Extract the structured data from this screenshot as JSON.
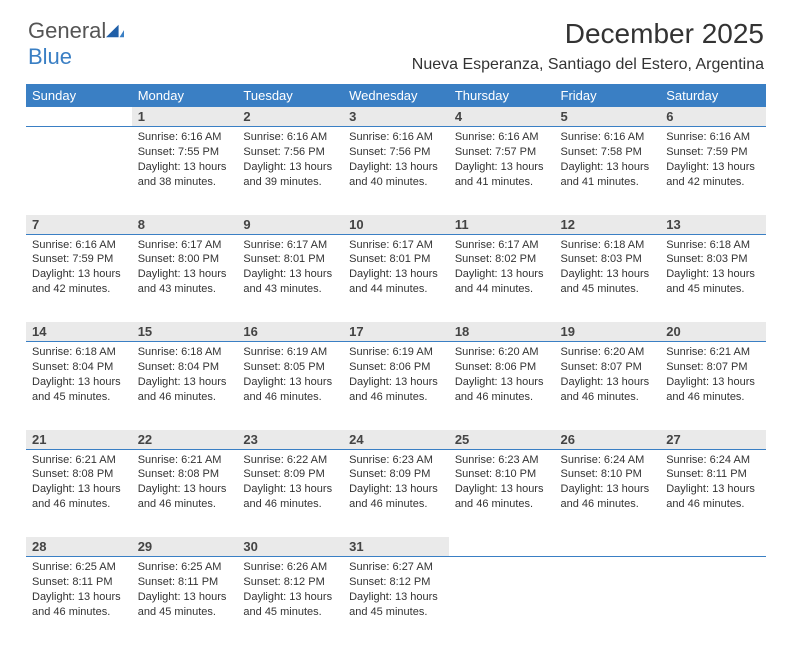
{
  "brand": {
    "part1": "General",
    "part2": "Blue"
  },
  "title": "December 2025",
  "location": "Nueva Esperanza, Santiago del Estero, Argentina",
  "colors": {
    "header_bg": "#3a7fc4",
    "header_text": "#ffffff",
    "daynum_bg": "#eaeaea",
    "daynum_border": "#3a7fc4",
    "body_text": "#333333",
    "page_bg": "#ffffff"
  },
  "typography": {
    "title_fontsize": 28,
    "location_fontsize": 16,
    "header_fontsize": 13,
    "daynum_fontsize": 13,
    "cell_fontsize": 11
  },
  "weekdays": [
    "Sunday",
    "Monday",
    "Tuesday",
    "Wednesday",
    "Thursday",
    "Friday",
    "Saturday"
  ],
  "weeks": [
    [
      null,
      {
        "n": "1",
        "sr": "Sunrise: 6:16 AM",
        "ss": "Sunset: 7:55 PM",
        "d1": "Daylight: 13 hours",
        "d2": "and 38 minutes."
      },
      {
        "n": "2",
        "sr": "Sunrise: 6:16 AM",
        "ss": "Sunset: 7:56 PM",
        "d1": "Daylight: 13 hours",
        "d2": "and 39 minutes."
      },
      {
        "n": "3",
        "sr": "Sunrise: 6:16 AM",
        "ss": "Sunset: 7:56 PM",
        "d1": "Daylight: 13 hours",
        "d2": "and 40 minutes."
      },
      {
        "n": "4",
        "sr": "Sunrise: 6:16 AM",
        "ss": "Sunset: 7:57 PM",
        "d1": "Daylight: 13 hours",
        "d2": "and 41 minutes."
      },
      {
        "n": "5",
        "sr": "Sunrise: 6:16 AM",
        "ss": "Sunset: 7:58 PM",
        "d1": "Daylight: 13 hours",
        "d2": "and 41 minutes."
      },
      {
        "n": "6",
        "sr": "Sunrise: 6:16 AM",
        "ss": "Sunset: 7:59 PM",
        "d1": "Daylight: 13 hours",
        "d2": "and 42 minutes."
      }
    ],
    [
      {
        "n": "7",
        "sr": "Sunrise: 6:16 AM",
        "ss": "Sunset: 7:59 PM",
        "d1": "Daylight: 13 hours",
        "d2": "and 42 minutes."
      },
      {
        "n": "8",
        "sr": "Sunrise: 6:17 AM",
        "ss": "Sunset: 8:00 PM",
        "d1": "Daylight: 13 hours",
        "d2": "and 43 minutes."
      },
      {
        "n": "9",
        "sr": "Sunrise: 6:17 AM",
        "ss": "Sunset: 8:01 PM",
        "d1": "Daylight: 13 hours",
        "d2": "and 43 minutes."
      },
      {
        "n": "10",
        "sr": "Sunrise: 6:17 AM",
        "ss": "Sunset: 8:01 PM",
        "d1": "Daylight: 13 hours",
        "d2": "and 44 minutes."
      },
      {
        "n": "11",
        "sr": "Sunrise: 6:17 AM",
        "ss": "Sunset: 8:02 PM",
        "d1": "Daylight: 13 hours",
        "d2": "and 44 minutes."
      },
      {
        "n": "12",
        "sr": "Sunrise: 6:18 AM",
        "ss": "Sunset: 8:03 PM",
        "d1": "Daylight: 13 hours",
        "d2": "and 45 minutes."
      },
      {
        "n": "13",
        "sr": "Sunrise: 6:18 AM",
        "ss": "Sunset: 8:03 PM",
        "d1": "Daylight: 13 hours",
        "d2": "and 45 minutes."
      }
    ],
    [
      {
        "n": "14",
        "sr": "Sunrise: 6:18 AM",
        "ss": "Sunset: 8:04 PM",
        "d1": "Daylight: 13 hours",
        "d2": "and 45 minutes."
      },
      {
        "n": "15",
        "sr": "Sunrise: 6:18 AM",
        "ss": "Sunset: 8:04 PM",
        "d1": "Daylight: 13 hours",
        "d2": "and 46 minutes."
      },
      {
        "n": "16",
        "sr": "Sunrise: 6:19 AM",
        "ss": "Sunset: 8:05 PM",
        "d1": "Daylight: 13 hours",
        "d2": "and 46 minutes."
      },
      {
        "n": "17",
        "sr": "Sunrise: 6:19 AM",
        "ss": "Sunset: 8:06 PM",
        "d1": "Daylight: 13 hours",
        "d2": "and 46 minutes."
      },
      {
        "n": "18",
        "sr": "Sunrise: 6:20 AM",
        "ss": "Sunset: 8:06 PM",
        "d1": "Daylight: 13 hours",
        "d2": "and 46 minutes."
      },
      {
        "n": "19",
        "sr": "Sunrise: 6:20 AM",
        "ss": "Sunset: 8:07 PM",
        "d1": "Daylight: 13 hours",
        "d2": "and 46 minutes."
      },
      {
        "n": "20",
        "sr": "Sunrise: 6:21 AM",
        "ss": "Sunset: 8:07 PM",
        "d1": "Daylight: 13 hours",
        "d2": "and 46 minutes."
      }
    ],
    [
      {
        "n": "21",
        "sr": "Sunrise: 6:21 AM",
        "ss": "Sunset: 8:08 PM",
        "d1": "Daylight: 13 hours",
        "d2": "and 46 minutes."
      },
      {
        "n": "22",
        "sr": "Sunrise: 6:21 AM",
        "ss": "Sunset: 8:08 PM",
        "d1": "Daylight: 13 hours",
        "d2": "and 46 minutes."
      },
      {
        "n": "23",
        "sr": "Sunrise: 6:22 AM",
        "ss": "Sunset: 8:09 PM",
        "d1": "Daylight: 13 hours",
        "d2": "and 46 minutes."
      },
      {
        "n": "24",
        "sr": "Sunrise: 6:23 AM",
        "ss": "Sunset: 8:09 PM",
        "d1": "Daylight: 13 hours",
        "d2": "and 46 minutes."
      },
      {
        "n": "25",
        "sr": "Sunrise: 6:23 AM",
        "ss": "Sunset: 8:10 PM",
        "d1": "Daylight: 13 hours",
        "d2": "and 46 minutes."
      },
      {
        "n": "26",
        "sr": "Sunrise: 6:24 AM",
        "ss": "Sunset: 8:10 PM",
        "d1": "Daylight: 13 hours",
        "d2": "and 46 minutes."
      },
      {
        "n": "27",
        "sr": "Sunrise: 6:24 AM",
        "ss": "Sunset: 8:11 PM",
        "d1": "Daylight: 13 hours",
        "d2": "and 46 minutes."
      }
    ],
    [
      {
        "n": "28",
        "sr": "Sunrise: 6:25 AM",
        "ss": "Sunset: 8:11 PM",
        "d1": "Daylight: 13 hours",
        "d2": "and 46 minutes."
      },
      {
        "n": "29",
        "sr": "Sunrise: 6:25 AM",
        "ss": "Sunset: 8:11 PM",
        "d1": "Daylight: 13 hours",
        "d2": "and 45 minutes."
      },
      {
        "n": "30",
        "sr": "Sunrise: 6:26 AM",
        "ss": "Sunset: 8:12 PM",
        "d1": "Daylight: 13 hours",
        "d2": "and 45 minutes."
      },
      {
        "n": "31",
        "sr": "Sunrise: 6:27 AM",
        "ss": "Sunset: 8:12 PM",
        "d1": "Daylight: 13 hours",
        "d2": "and 45 minutes."
      },
      null,
      null,
      null
    ]
  ]
}
